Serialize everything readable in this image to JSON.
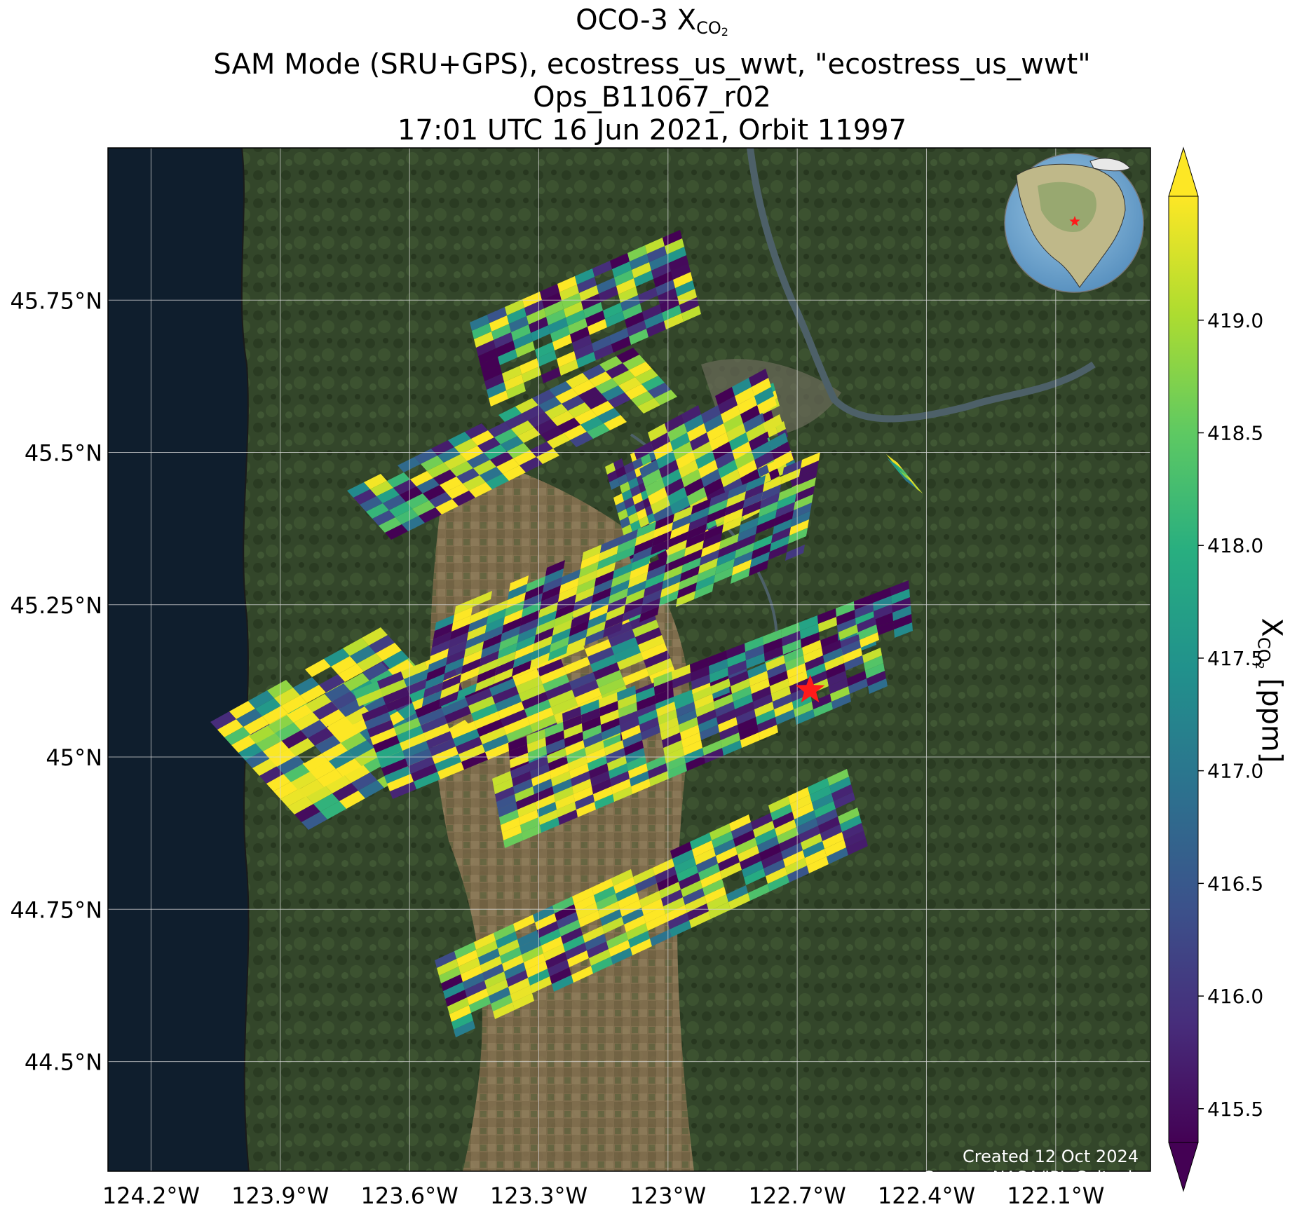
{
  "title": {
    "line1_prefix": "OCO-3 X",
    "line1_sub": "CO",
    "line1_subsub": "2",
    "line2": "SAM Mode (SRU+GPS), ecostress_us_wwt, \"ecostress_us_wwt\"",
    "line3": "Ops_B11067_r02",
    "line4": "17:01 UTC 16 Jun 2021, Orbit 11997"
  },
  "colorbar": {
    "label_prefix": "X",
    "label_sub": "CO",
    "label_subsub": "2",
    "label_suffix": " [ppm]",
    "colormap": "viridis",
    "extend": "both",
    "range": [
      415.35,
      419.55
    ],
    "ticks": [
      {
        "value": 415.5,
        "label": "415.5"
      },
      {
        "value": 416.0,
        "label": "416.0"
      },
      {
        "value": 416.5,
        "label": "416.5"
      },
      {
        "value": 417.0,
        "label": "417.0"
      },
      {
        "value": 417.5,
        "label": "417.5"
      },
      {
        "value": 418.0,
        "label": "418.0"
      },
      {
        "value": 418.5,
        "label": "418.5"
      },
      {
        "value": 419.0,
        "label": "419.0"
      }
    ]
  },
  "chart_data": {
    "type": "heatmap",
    "description_units": "XCO2 ppm",
    "x_axis": {
      "ticks": [
        {
          "value": -124.2,
          "label": "124.2°W"
        },
        {
          "value": -123.9,
          "label": "123.9°W"
        },
        {
          "value": -123.6,
          "label": "123.6°W"
        },
        {
          "value": -123.3,
          "label": "123.3°W"
        },
        {
          "value": -123.0,
          "label": "123°W"
        },
        {
          "value": -122.7,
          "label": "122.7°W"
        },
        {
          "value": -122.4,
          "label": "122.4°W"
        },
        {
          "value": -122.1,
          "label": "122.1°W"
        }
      ],
      "range": [
        -124.3,
        -121.88
      ]
    },
    "y_axis": {
      "ticks": [
        {
          "value": 45.75,
          "label": "45.75°N"
        },
        {
          "value": 45.5,
          "label": "45.5°N"
        },
        {
          "value": 45.25,
          "label": "45.25°N"
        },
        {
          "value": 45.0,
          "label": "45°N"
        },
        {
          "value": 44.75,
          "label": "44.75°N"
        },
        {
          "value": 44.5,
          "label": "44.5°N"
        }
      ],
      "range": [
        44.32,
        46.0
      ]
    },
    "grid": true,
    "target_site": {
      "lon": -122.67,
      "lat": 45.11,
      "marker": "red-star"
    },
    "swaths": [
      {
        "name": "",
        "lon": [
          -124.12,
          -123.47
        ],
        "lat": [
          45.18,
          45.47
        ],
        "value_range": [
          417.0,
          419.3
        ],
        "lines": [
          [
            "-124.12,45.08",
            "-123.47,45.42"
          ]
        ]
      },
      {
        "name": "",
        "lon": [
          -123.55,
          -122.88
        ],
        "lat": [
          45.38,
          45.72
        ],
        "value_range": [
          415.5,
          419.3
        ]
      },
      {
        "name": "",
        "lon": [
          -123.6,
          -122.4
        ],
        "lat": [
          44.95,
          45.42
        ],
        "value_range": [
          415.5,
          419.3
        ]
      },
      {
        "name": "",
        "lon": [
          -122.86,
          -122.35
        ],
        "lat": [
          45.15,
          45.6
        ],
        "value_range": [
          415.5,
          419.3
        ]
      },
      {
        "name": "",
        "lon": [
          -123.38,
          -122.3
        ],
        "lat": [
          44.88,
          45.28
        ],
        "value_range": [
          415.5,
          419.3
        ]
      },
      {
        "name": "",
        "lon": [
          -123.42,
          -122.15
        ],
        "lat": [
          44.55,
          45.2
        ],
        "value_range": [
          415.5,
          419.3
        ]
      }
    ],
    "inset_globe": {
      "marker": "red-star"
    }
  },
  "credit": {
    "line1": "Created 12 Oct 2024",
    "line2": "Source: NASA/JPL-Caltech"
  },
  "colors": {
    "ocean": "#0f1e2d",
    "land": "#34472a",
    "farmland": "#8a7152",
    "river": "#4d6068",
    "grid": "#d8d8d8",
    "star": "#ff1a1a"
  }
}
